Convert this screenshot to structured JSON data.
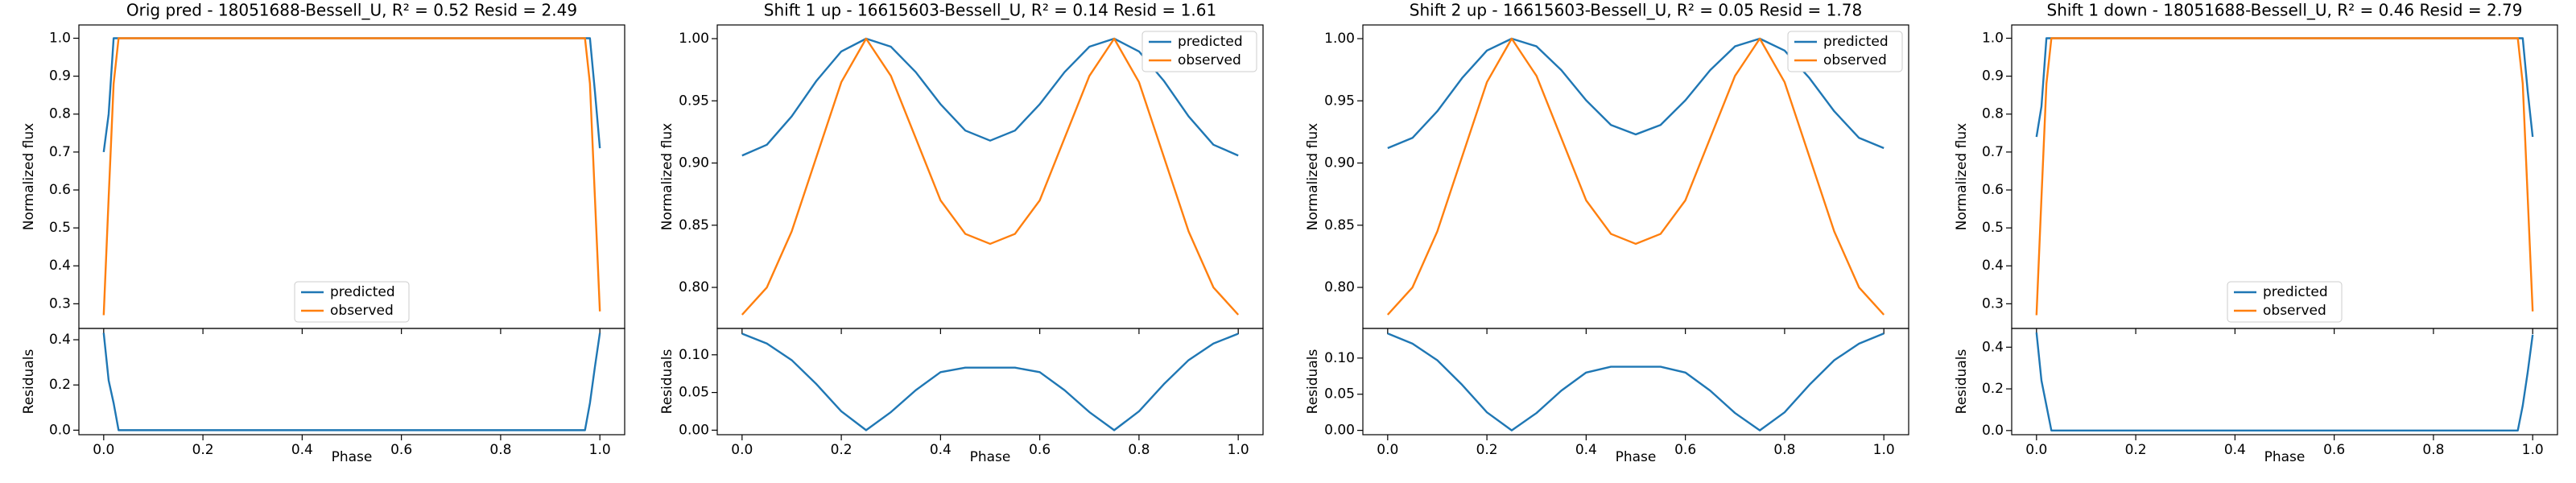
{
  "chart_data": [
    {
      "type": "line",
      "title": "Orig pred - 18051688-Bessell_U, R² = 0.52 Resid = 2.49",
      "ylabel": "Normalized flux",
      "legend": "lower center",
      "x": [
        0,
        0.01,
        0.02,
        0.03,
        0.05,
        0.1,
        0.2,
        0.3,
        0.4,
        0.5,
        0.6,
        0.7,
        0.8,
        0.9,
        0.95,
        0.97,
        0.98,
        0.99,
        1
      ],
      "series": [
        {
          "name": "predicted",
          "color": "#1f77b4",
          "values": [
            0.7,
            0.8,
            1.0,
            1.0,
            1.0,
            1.0,
            1.0,
            1.0,
            1.0,
            1.0,
            1.0,
            1.0,
            1.0,
            1.0,
            1.0,
            1.0,
            1.0,
            0.86,
            0.71
          ]
        },
        {
          "name": "observed",
          "color": "#ff7f0e",
          "values": [
            0.27,
            0.58,
            0.88,
            1.0,
            1.0,
            1.0,
            1.0,
            1.0,
            1.0,
            1.0,
            1.0,
            1.0,
            1.0,
            1.0,
            1.0,
            1.0,
            0.88,
            0.58,
            0.28
          ]
        }
      ],
      "xlim": [
        -0.05,
        1.05
      ],
      "xticks": [
        {
          "value": 0,
          "label": "0.0"
        },
        0.2,
        0.4,
        0.6,
        0.8,
        {
          "value": 1,
          "label": "1.0"
        }
      ],
      "ylim": [
        0.235,
        1.035
      ],
      "yticks": [
        0.3,
        0.4,
        0.5,
        0.6,
        0.7,
        0.8,
        0.9,
        {
          "value": 1,
          "label": "1.0"
        }
      ],
      "residuals": {
        "ylabel": "Residuals",
        "xlabel": "Phase",
        "color": "#1f77b4",
        "values": [
          0.43,
          0.22,
          0.12,
          0,
          0,
          0,
          0,
          0,
          0,
          0,
          0,
          0,
          0,
          0,
          0,
          0,
          0.12,
          0.28,
          0.43
        ],
        "ylim": [
          -0.02,
          0.45
        ],
        "yticks": [
          {
            "value": 0,
            "label": "0.0"
          },
          0.2,
          0.4
        ]
      }
    },
    {
      "type": "line",
      "title": "Shift 1 up - 16615603-Bessell_U, R² = 0.14 Resid = 1.61",
      "ylabel": "Normalized flux",
      "legend": "upper right",
      "x": [
        0,
        0.05,
        0.1,
        0.15,
        0.2,
        0.25,
        0.3,
        0.35,
        0.4,
        0.45,
        0.5,
        0.55,
        0.6,
        0.65,
        0.7,
        0.75,
        0.8,
        0.85,
        0.9,
        0.95,
        1
      ],
      "series": [
        {
          "name": "predicted",
          "color": "#1f77b4",
          "values": [
            0.906,
            0.9147,
            0.9375,
            0.9661,
            0.9897,
            1.0,
            0.9935,
            0.9731,
            0.9473,
            0.9261,
            0.918,
            0.9261,
            0.9473,
            0.9731,
            0.9935,
            1.0,
            0.9897,
            0.9661,
            0.9375,
            0.9147,
            0.906
          ]
        },
        {
          "name": "observed",
          "color": "#ff7f0e",
          "values": [
            0.778,
            0.8,
            0.845,
            0.905,
            0.965,
            1.0,
            0.97,
            0.92,
            0.87,
            0.843,
            0.835,
            0.843,
            0.87,
            0.92,
            0.97,
            1.0,
            0.965,
            0.905,
            0.845,
            0.8,
            0.778
          ]
        }
      ],
      "xlim": [
        -0.05,
        1.05
      ],
      "xticks": [
        {
          "value": 0,
          "label": "0.0"
        },
        0.2,
        0.4,
        0.6,
        0.8,
        {
          "value": 1,
          "label": "1.0"
        }
      ],
      "ylim": [
        0.767,
        1.011
      ],
      "yticks": [
        {
          "value": 0.8,
          "label": "0.80"
        },
        0.85,
        {
          "value": 0.9,
          "label": "0.90"
        },
        0.95,
        {
          "value": 1,
          "label": "1.00"
        }
      ],
      "residuals": {
        "ylabel": "Residuals",
        "xlabel": "Phase",
        "color": "#1f77b4",
        "values": [
          0.128,
          0.115,
          0.093,
          0.061,
          0.025,
          0,
          0.024,
          0.053,
          0.077,
          0.083,
          0.083,
          0.083,
          0.077,
          0.053,
          0.024,
          0,
          0.025,
          0.061,
          0.093,
          0.115,
          0.128
        ],
        "ylim": [
          -0.006,
          0.135
        ],
        "yticks": [
          {
            "value": 0,
            "label": "0.00"
          },
          0.05,
          {
            "value": 0.1,
            "label": "0.10"
          }
        ]
      }
    },
    {
      "type": "line",
      "title": "Shift 2 up - 16615603-Bessell_U, R² = 0.05 Resid = 1.78",
      "ylabel": "Normalized flux",
      "legend": "upper right",
      "x": [
        0,
        0.05,
        0.1,
        0.15,
        0.2,
        0.25,
        0.3,
        0.35,
        0.4,
        0.45,
        0.5,
        0.55,
        0.6,
        0.65,
        0.7,
        0.75,
        0.8,
        0.85,
        0.9,
        0.95,
        1
      ],
      "series": [
        {
          "name": "predicted",
          "color": "#1f77b4",
          "values": [
            0.912,
            0.9202,
            0.9416,
            0.9683,
            0.9904,
            1.0,
            0.9938,
            0.9747,
            0.9504,
            0.9306,
            0.923,
            0.9306,
            0.9504,
            0.9747,
            0.9938,
            1.0,
            0.9904,
            0.9683,
            0.9416,
            0.9202,
            0.912
          ]
        },
        {
          "name": "observed",
          "color": "#ff7f0e",
          "values": [
            0.778,
            0.8,
            0.845,
            0.905,
            0.965,
            1.0,
            0.97,
            0.92,
            0.87,
            0.843,
            0.835,
            0.843,
            0.87,
            0.92,
            0.97,
            1.0,
            0.965,
            0.905,
            0.845,
            0.8,
            0.778
          ]
        }
      ],
      "xlim": [
        -0.05,
        1.05
      ],
      "xticks": [
        {
          "value": 0,
          "label": "0.0"
        },
        0.2,
        0.4,
        0.6,
        0.8,
        {
          "value": 1,
          "label": "1.0"
        }
      ],
      "ylim": [
        0.767,
        1.011
      ],
      "yticks": [
        {
          "value": 0.8,
          "label": "0.80"
        },
        0.85,
        {
          "value": 0.9,
          "label": "0.90"
        },
        0.95,
        {
          "value": 1,
          "label": "1.00"
        }
      ],
      "residuals": {
        "ylabel": "Residuals",
        "xlabel": "Phase",
        "color": "#1f77b4",
        "values": [
          0.134,
          0.12,
          0.097,
          0.063,
          0.025,
          0,
          0.024,
          0.055,
          0.08,
          0.088,
          0.088,
          0.088,
          0.08,
          0.055,
          0.024,
          0,
          0.025,
          0.063,
          0.097,
          0.12,
          0.134
        ],
        "ylim": [
          -0.006,
          0.141
        ],
        "yticks": [
          {
            "value": 0,
            "label": "0.00"
          },
          0.05,
          {
            "value": 0.1,
            "label": "0.10"
          }
        ]
      }
    },
    {
      "type": "line",
      "title": "Shift 1 down - 18051688-Bessell_U, R² = 0.46 Resid = 2.79",
      "ylabel": "Normalized flux",
      "legend": "lower center",
      "x": [
        0,
        0.01,
        0.02,
        0.03,
        0.05,
        0.1,
        0.2,
        0.3,
        0.4,
        0.5,
        0.6,
        0.7,
        0.8,
        0.9,
        0.95,
        0.97,
        0.98,
        0.99,
        1
      ],
      "series": [
        {
          "name": "predicted",
          "color": "#1f77b4",
          "values": [
            0.74,
            0.82,
            1.0,
            1.0,
            1.0,
            1.0,
            1.0,
            1.0,
            1.0,
            1.0,
            1.0,
            1.0,
            1.0,
            1.0,
            1.0,
            1.0,
            1.0,
            0.86,
            0.74
          ]
        },
        {
          "name": "observed",
          "color": "#ff7f0e",
          "values": [
            0.27,
            0.58,
            0.88,
            1.0,
            1.0,
            1.0,
            1.0,
            1.0,
            1.0,
            1.0,
            1.0,
            1.0,
            1.0,
            1.0,
            1.0,
            1.0,
            0.88,
            0.58,
            0.28
          ]
        }
      ],
      "xlim": [
        -0.05,
        1.05
      ],
      "xticks": [
        {
          "value": 0,
          "label": "0.0"
        },
        0.2,
        0.4,
        0.6,
        0.8,
        {
          "value": 1,
          "label": "1.0"
        }
      ],
      "ylim": [
        0.235,
        1.035
      ],
      "yticks": [
        0.3,
        0.4,
        0.5,
        0.6,
        0.7,
        0.8,
        0.9,
        {
          "value": 1,
          "label": "1.0"
        }
      ],
      "residuals": {
        "ylabel": "Residuals",
        "xlabel": "Phase",
        "color": "#1f77b4",
        "values": [
          0.47,
          0.24,
          0.12,
          0,
          0,
          0,
          0,
          0,
          0,
          0,
          0,
          0,
          0,
          0,
          0,
          0,
          0.12,
          0.28,
          0.46
        ],
        "ylim": [
          -0.02,
          0.49
        ],
        "yticks": [
          {
            "value": 0,
            "label": "0.0"
          },
          0.2,
          0.4
        ]
      }
    }
  ]
}
